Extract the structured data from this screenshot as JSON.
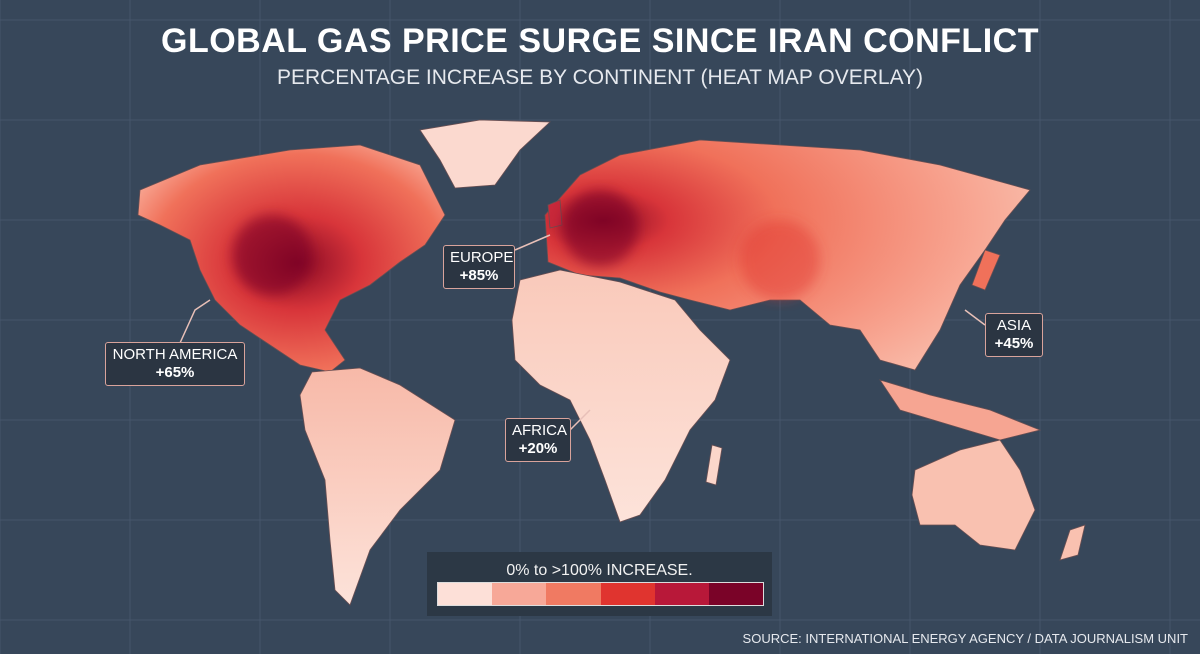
{
  "title": "GLOBAL GAS PRICE SURGE SINCE IRAN CONFLICT",
  "subtitle": "PERCENTAGE INCREASE BY CONTINENT (HEAT MAP OVERLAY)",
  "regions": [
    {
      "name": "NORTH AMERICA",
      "value": "+65%",
      "increase_pct": 65
    },
    {
      "name": "EUROPE",
      "value": "+85%",
      "increase_pct": 85
    },
    {
      "name": "AFRICA",
      "value": "+20%",
      "increase_pct": 20
    },
    {
      "name": "ASIA",
      "value": "+45%",
      "increase_pct": 45
    }
  ],
  "legend": {
    "label": "0% to >100% INCREASE.",
    "colors": [
      "#fde0d8",
      "#f7a898",
      "#f07a62",
      "#e0342f",
      "#b81839",
      "#7a0328"
    ]
  },
  "source": "SOURCE: INTERNATIONAL ENERGY AGENCY / DATA JOURNALISM UNIT",
  "colors": {
    "background": "#37475a",
    "low": "#fbd9cf",
    "high": "#8a0a26"
  }
}
